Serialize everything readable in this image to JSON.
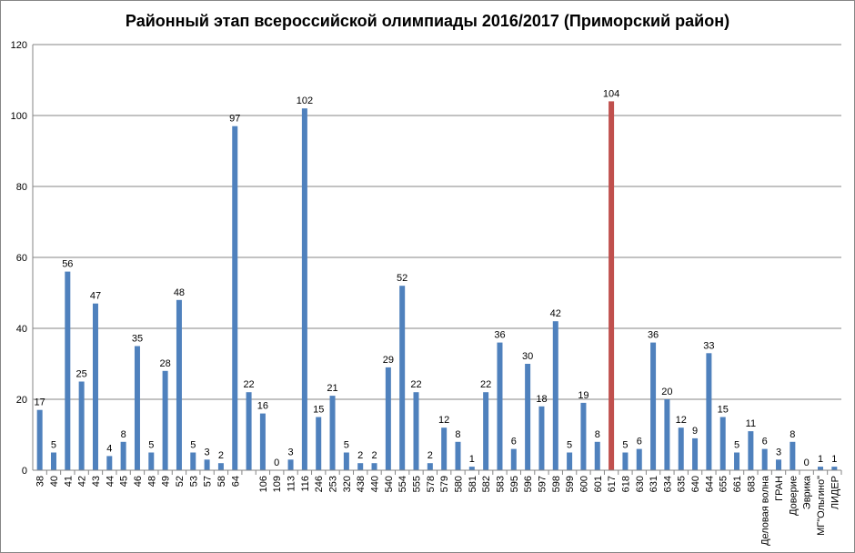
{
  "chart_data": {
    "type": "bar",
    "title": "Районный этап всероссийской олимпиады 2016/2017 (Приморский район)",
    "categories": [
      "38",
      "40",
      "41",
      "42",
      "43",
      "44",
      "45",
      "46",
      "48",
      "49",
      "52",
      "53",
      "57",
      "58",
      "64",
      null,
      "106",
      "109",
      "113",
      "116",
      "246",
      "253",
      "320",
      "438",
      "440",
      "540",
      "554",
      "555",
      "578",
      "579",
      "580",
      "581",
      "582",
      "583",
      "595",
      "596",
      "597",
      "598",
      "599",
      "600",
      "601",
      "617",
      "618",
      "630",
      "631",
      "634",
      "635",
      "640",
      "644",
      "655",
      "661",
      "683",
      "Деловая волна",
      "ГРАН",
      "Доверие",
      "Эврика",
      "МГ\"Ольгино\"",
      "ЛИДЕР"
    ],
    "values": [
      17,
      5,
      56,
      25,
      47,
      4,
      8,
      35,
      5,
      28,
      48,
      5,
      3,
      2,
      97,
      22,
      16,
      0,
      3,
      102,
      15,
      21,
      5,
      2,
      2,
      29,
      52,
      22,
      2,
      12,
      8,
      1,
      22,
      36,
      6,
      30,
      18,
      42,
      5,
      19,
      8,
      104,
      5,
      6,
      36,
      20,
      12,
      9,
      33,
      15,
      5,
      11,
      6,
      3,
      8,
      0,
      1,
      1
    ],
    "colors": [
      "#4f81bd",
      "#4f81bd",
      "#4f81bd",
      "#4f81bd",
      "#4f81bd",
      "#4f81bd",
      "#4f81bd",
      "#4f81bd",
      "#4f81bd",
      "#4f81bd",
      "#4f81bd",
      "#4f81bd",
      "#4f81bd",
      "#4f81bd",
      "#4f81bd",
      "#4f81bd",
      "#4f81bd",
      "#4f81bd",
      "#4f81bd",
      "#4f81bd",
      "#4f81bd",
      "#4f81bd",
      "#4f81bd",
      "#4f81bd",
      "#4f81bd",
      "#4f81bd",
      "#4f81bd",
      "#4f81bd",
      "#4f81bd",
      "#4f81bd",
      "#4f81bd",
      "#4f81bd",
      "#4f81bd",
      "#4f81bd",
      "#4f81bd",
      "#4f81bd",
      "#4f81bd",
      "#4f81bd",
      "#4f81bd",
      "#4f81bd",
      "#4f81bd",
      "#c0504d",
      "#4f81bd",
      "#4f81bd",
      "#4f81bd",
      "#4f81bd",
      "#4f81bd",
      "#4f81bd",
      "#4f81bd",
      "#4f81bd",
      "#4f81bd",
      "#4f81bd",
      "#4f81bd",
      "#4f81bd",
      "#4f81bd",
      "#4f81bd",
      "#4f81bd",
      "#4f81bd"
    ],
    "ylim": [
      0,
      120
    ],
    "yticks": [
      0,
      20,
      40,
      60,
      80,
      100,
      120
    ],
    "grid": true
  }
}
